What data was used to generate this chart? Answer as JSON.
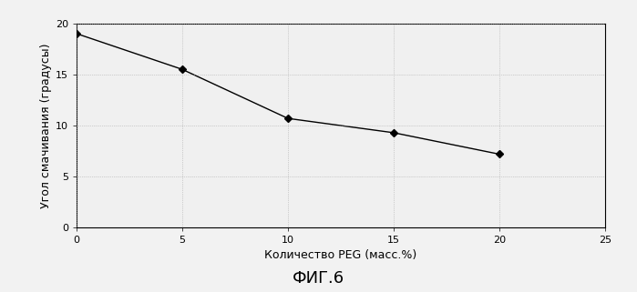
{
  "x": [
    0,
    5,
    10,
    15,
    20
  ],
  "y": [
    19.0,
    15.5,
    10.7,
    9.3,
    7.2
  ],
  "xlim": [
    0,
    25
  ],
  "ylim": [
    0,
    20
  ],
  "xticks": [
    0,
    5,
    10,
    15,
    20,
    25
  ],
  "yticks": [
    0,
    5,
    10,
    15,
    20
  ],
  "xlabel": "Количество PEG (масс.%)",
  "ylabel": "Угол смачивания (градусы)",
  "figure_title": "ФИГ.6",
  "line_color": "#000000",
  "marker_color": "#000000",
  "background_color": "#f0f0f0",
  "plot_bg_color": "#f0f0f0",
  "grid_color": "#aaaaaa",
  "tick_fontsize": 8,
  "label_fontsize": 9,
  "title_fontsize": 13
}
